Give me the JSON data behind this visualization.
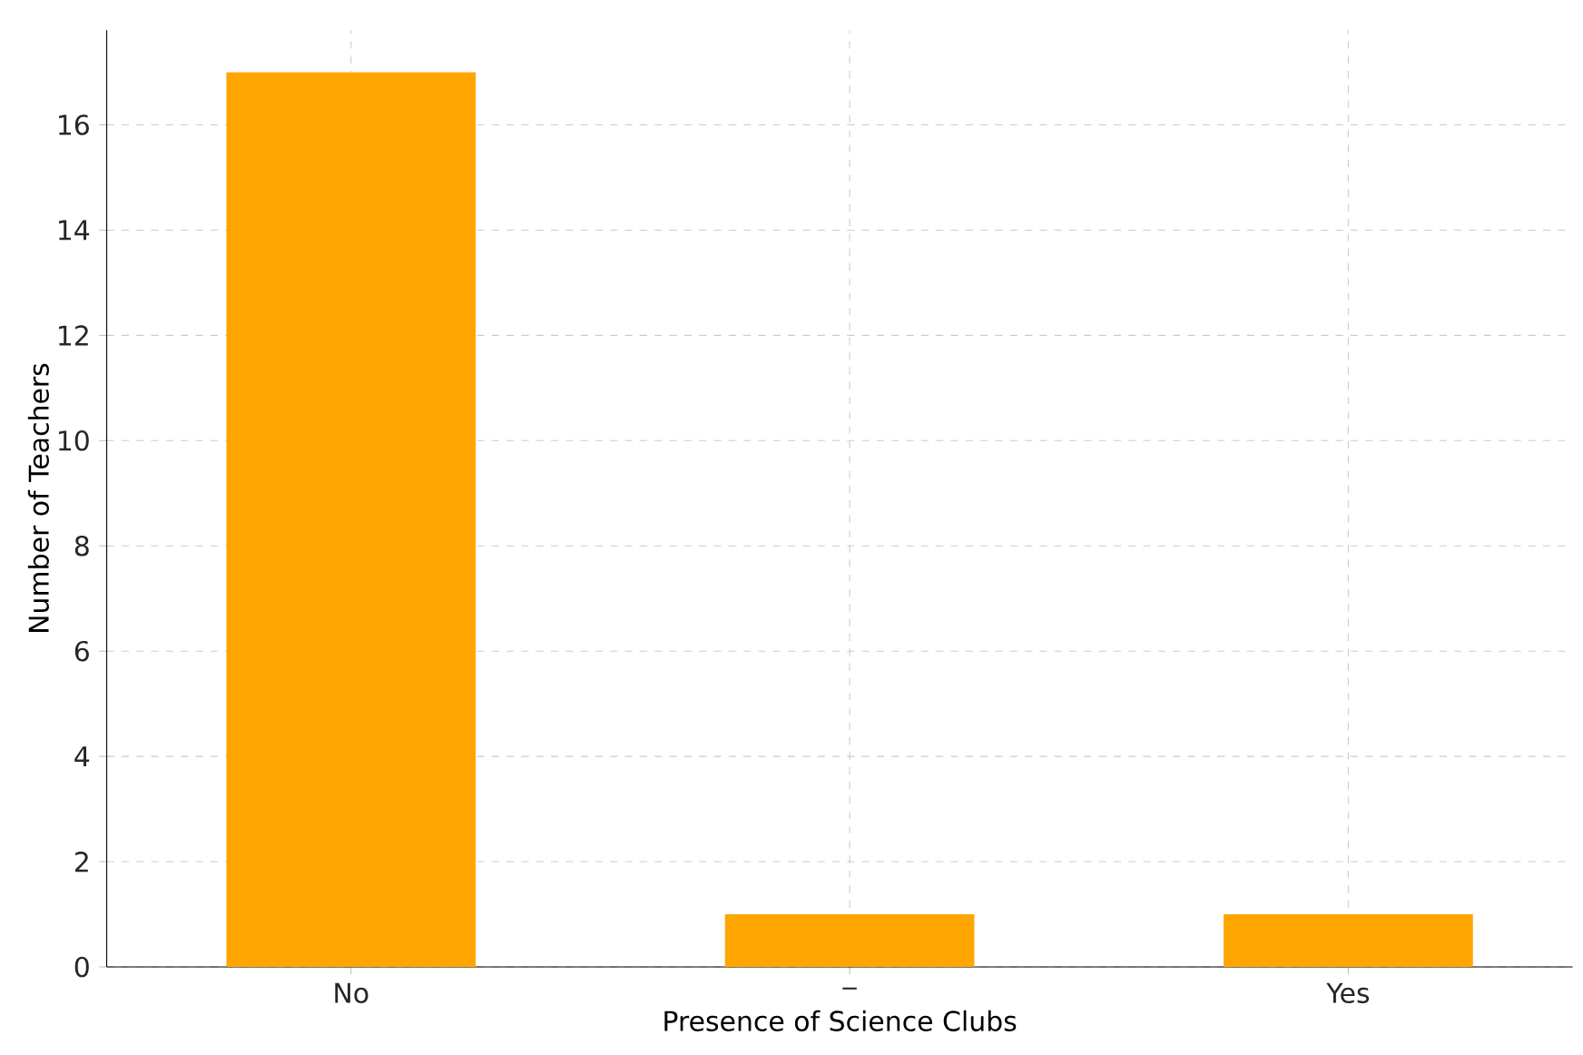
{
  "chart_data": {
    "type": "bar",
    "xlabel": "Presence of Science Clubs",
    "ylabel": "Number of Teachers",
    "categories": [
      "No",
      "_",
      "Yes"
    ],
    "values": [
      17,
      1,
      1
    ],
    "color": "#ffa500",
    "ylim": [
      0,
      17.8
    ],
    "yticks": [
      0,
      2,
      4,
      6,
      8,
      10,
      12,
      14,
      16
    ],
    "grid": true
  }
}
